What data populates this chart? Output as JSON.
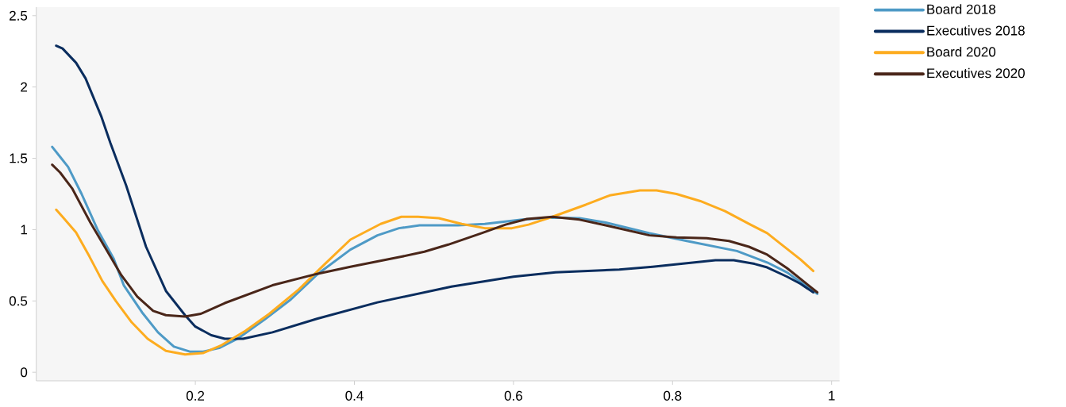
{
  "chart_data": {
    "type": "line",
    "xlim": [
      0,
      1.01
    ],
    "ylim": [
      -0.06,
      2.56
    ],
    "xticks": [
      0.2,
      0.4,
      0.6,
      0.8,
      1
    ],
    "yticks": [
      0,
      0.5,
      1,
      1.5,
      2,
      2.5
    ],
    "grid": false,
    "legend": "top right",
    "marker": "none",
    "line_style": "solid",
    "series": [
      {
        "name": "Board 2018",
        "color": "#4e9ac6",
        "x": [
          0.02,
          0.03,
          0.04,
          0.057,
          0.077,
          0.097,
          0.11,
          0.133,
          0.153,
          0.173,
          0.193,
          0.21,
          0.23,
          0.253,
          0.287,
          0.32,
          0.353,
          0.395,
          0.429,
          0.456,
          0.482,
          0.53,
          0.564,
          0.611,
          0.649,
          0.683,
          0.716,
          0.771,
          0.818,
          0.881,
          0.919,
          0.944,
          0.982
        ],
        "values": [
          1.58,
          1.51,
          1.44,
          1.25,
          1.0,
          0.8,
          0.61,
          0.42,
          0.28,
          0.18,
          0.145,
          0.145,
          0.17,
          0.235,
          0.37,
          0.51,
          0.685,
          0.86,
          0.96,
          1.01,
          1.03,
          1.03,
          1.04,
          1.07,
          1.085,
          1.08,
          1.05,
          0.975,
          0.92,
          0.85,
          0.77,
          0.7,
          0.55
        ]
      },
      {
        "name": "Executives 2018",
        "color": "#0a2d5e",
        "x": [
          0.025,
          0.033,
          0.05,
          0.062,
          0.082,
          0.093,
          0.113,
          0.138,
          0.163,
          0.187,
          0.2,
          0.22,
          0.237,
          0.26,
          0.297,
          0.353,
          0.429,
          0.522,
          0.6,
          0.653,
          0.733,
          0.775,
          0.818,
          0.854,
          0.877,
          0.903,
          0.919,
          0.944,
          0.961,
          0.977
        ],
        "values": [
          2.29,
          2.27,
          2.17,
          2.06,
          1.79,
          1.61,
          1.31,
          0.88,
          0.57,
          0.4,
          0.32,
          0.26,
          0.235,
          0.235,
          0.28,
          0.375,
          0.49,
          0.6,
          0.67,
          0.7,
          0.72,
          0.74,
          0.765,
          0.785,
          0.785,
          0.76,
          0.735,
          0.67,
          0.62,
          0.56
        ]
      },
      {
        "name": "Board 2020",
        "color": "#fdac1f",
        "x": [
          0.025,
          0.033,
          0.05,
          0.067,
          0.083,
          0.1,
          0.12,
          0.14,
          0.163,
          0.187,
          0.21,
          0.233,
          0.263,
          0.293,
          0.33,
          0.363,
          0.395,
          0.433,
          0.459,
          0.48,
          0.506,
          0.535,
          0.564,
          0.598,
          0.619,
          0.649,
          0.691,
          0.721,
          0.759,
          0.78,
          0.805,
          0.835,
          0.866,
          0.898,
          0.919,
          0.936,
          0.961,
          0.977
        ],
        "values": [
          1.14,
          1.09,
          0.98,
          0.81,
          0.64,
          0.5,
          0.35,
          0.235,
          0.15,
          0.125,
          0.135,
          0.19,
          0.29,
          0.41,
          0.58,
          0.76,
          0.93,
          1.04,
          1.09,
          1.09,
          1.08,
          1.04,
          1.01,
          1.01,
          1.035,
          1.09,
          1.175,
          1.24,
          1.275,
          1.275,
          1.25,
          1.2,
          1.13,
          1.035,
          0.975,
          0.9,
          0.79,
          0.71
        ]
      },
      {
        "name": "Executives 2020",
        "color": "#4a2619",
        "x": [
          0.02,
          0.03,
          0.045,
          0.068,
          0.087,
          0.107,
          0.127,
          0.147,
          0.163,
          0.187,
          0.207,
          0.237,
          0.297,
          0.353,
          0.395,
          0.459,
          0.488,
          0.518,
          0.56,
          0.59,
          0.617,
          0.649,
          0.683,
          0.716,
          0.771,
          0.805,
          0.843,
          0.871,
          0.896,
          0.919,
          0.944,
          0.982
        ],
        "values": [
          1.455,
          1.4,
          1.29,
          1.05,
          0.87,
          0.68,
          0.53,
          0.43,
          0.4,
          0.39,
          0.41,
          0.485,
          0.61,
          0.69,
          0.74,
          0.81,
          0.845,
          0.895,
          0.975,
          1.035,
          1.075,
          1.09,
          1.07,
          1.03,
          0.96,
          0.945,
          0.94,
          0.92,
          0.88,
          0.825,
          0.73,
          0.56
        ]
      }
    ]
  }
}
